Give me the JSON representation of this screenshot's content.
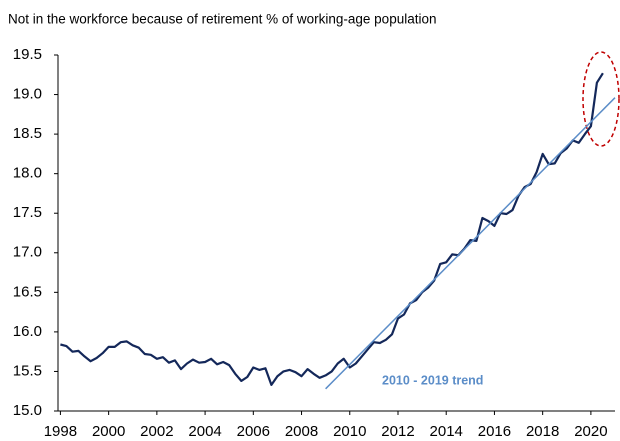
{
  "chart_data": {
    "type": "line",
    "title": "Not in the workforce because of retirement % of working-age population",
    "xlim": [
      1997.9,
      2021.0
    ],
    "xticks": [
      1998,
      2000,
      2002,
      2004,
      2006,
      2008,
      2010,
      2012,
      2014,
      2016,
      2018,
      2020
    ],
    "ylim": [
      15.0,
      19.5
    ],
    "yticks": [
      {
        "value": 15.0,
        "label": "15.0"
      },
      {
        "value": 15.5,
        "label": "15.5"
      },
      {
        "value": 16.0,
        "label": "16.0"
      },
      {
        "value": 16.5,
        "label": "16.5"
      },
      {
        "value": 17.0,
        "label": "17.0"
      },
      {
        "value": 17.5,
        "label": "17.5"
      },
      {
        "value": 18.0,
        "label": "18.0"
      },
      {
        "value": 18.5,
        "label": "18.5"
      },
      {
        "value": 19.0,
        "label": "19.0"
      },
      {
        "value": 19.5,
        "label": "19.5"
      }
    ],
    "grid": false,
    "series": [
      {
        "color": "#14285a",
        "x": [
          1998.0,
          1998.25,
          1998.5,
          1998.75,
          1999.0,
          1999.25,
          1999.5,
          1999.75,
          2000.0,
          2000.25,
          2000.5,
          2000.75,
          2001.0,
          2001.25,
          2001.5,
          2001.75,
          2002.0,
          2002.25,
          2002.5,
          2002.75,
          2003.0,
          2003.25,
          2003.5,
          2003.75,
          2004.0,
          2004.25,
          2004.5,
          2004.75,
          2005.0,
          2005.25,
          2005.5,
          2005.75,
          2006.0,
          2006.25,
          2006.5,
          2006.75,
          2007.0,
          2007.25,
          2007.5,
          2007.75,
          2008.0,
          2008.25,
          2008.5,
          2008.75,
          2009.0,
          2009.25,
          2009.5,
          2009.75,
          2010.0,
          2010.25,
          2010.5,
          2010.75,
          2011.0,
          2011.25,
          2011.5,
          2011.75,
          2012.0,
          2012.25,
          2012.5,
          2012.75,
          2013.0,
          2013.25,
          2013.5,
          2013.75,
          2014.0,
          2014.25,
          2014.5,
          2014.75,
          2015.0,
          2015.25,
          2015.5,
          2015.75,
          2016.0,
          2016.25,
          2016.5,
          2016.75,
          2017.0,
          2017.25,
          2017.5,
          2017.75,
          2018.0,
          2018.25,
          2018.5,
          2018.75,
          2019.0,
          2019.25,
          2019.5,
          2019.75,
          2020.0,
          2020.25,
          2020.5
        ],
        "values": [
          15.84,
          15.82,
          15.75,
          15.76,
          15.69,
          15.63,
          15.67,
          15.73,
          15.81,
          15.81,
          15.87,
          15.88,
          15.83,
          15.8,
          15.72,
          15.71,
          15.66,
          15.68,
          15.61,
          15.64,
          15.53,
          15.6,
          15.65,
          15.61,
          15.62,
          15.66,
          15.59,
          15.62,
          15.58,
          15.47,
          15.38,
          15.43,
          15.55,
          15.52,
          15.54,
          15.33,
          15.44,
          15.5,
          15.52,
          15.49,
          15.44,
          15.53,
          15.47,
          15.42,
          15.45,
          15.5,
          15.6,
          15.66,
          15.55,
          15.6,
          15.69,
          15.78,
          15.87,
          15.86,
          15.9,
          15.97,
          16.17,
          16.22,
          16.36,
          16.4,
          16.5,
          16.56,
          16.65,
          16.86,
          16.88,
          16.98,
          16.97,
          17.05,
          17.16,
          17.15,
          17.44,
          17.4,
          17.34,
          17.5,
          17.49,
          17.54,
          17.72,
          17.83,
          17.87,
          18.02,
          18.25,
          18.12,
          18.13,
          18.26,
          18.32,
          18.42,
          18.39,
          18.5,
          18.6,
          19.15,
          19.27
        ]
      },
      {
        "name": "2010 - 2019 trend",
        "color": "#5b8dc8",
        "x": [
          2009.0,
          2021.0
        ],
        "values": [
          15.28,
          18.96
        ]
      }
    ]
  }
}
